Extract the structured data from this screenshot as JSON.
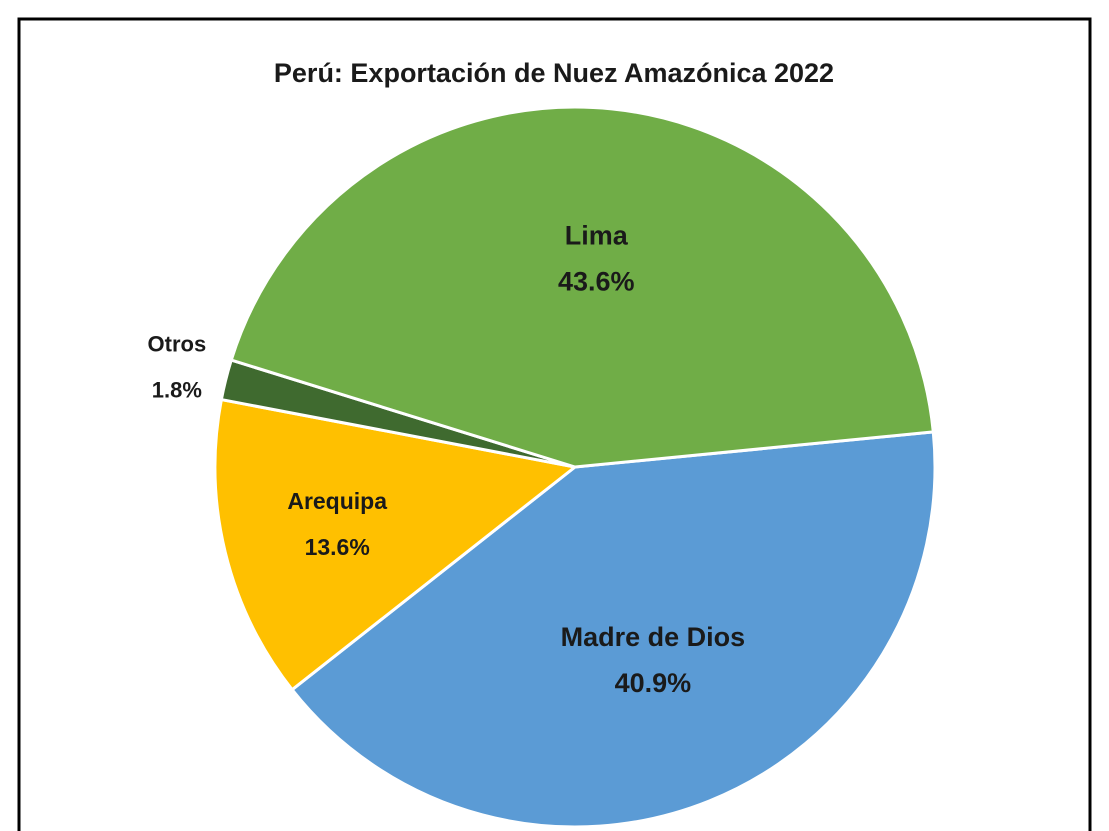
{
  "chart_data": {
    "type": "pie",
    "title": "Perú: Exportación de Nuez Amazónica 2022",
    "categories": [
      "Madre de Dios",
      "Arequipa",
      "Otros",
      "Lima"
    ],
    "values": [
      40.9,
      13.6,
      1.8,
      43.6
    ],
    "value_labels": [
      "40.9%",
      "13.6%",
      "1.8%",
      "43.6%"
    ],
    "colors": [
      "#5b9bd5",
      "#ffc000",
      "#3f6a2f",
      "#70ad47"
    ]
  }
}
